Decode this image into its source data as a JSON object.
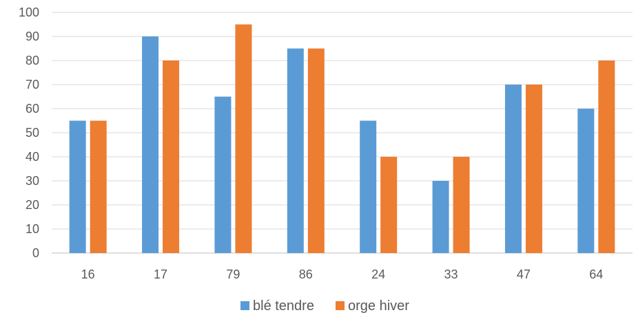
{
  "chart_data": {
    "type": "bar",
    "categories": [
      "16",
      "17",
      "79",
      "86",
      "24",
      "33",
      "47",
      "64"
    ],
    "series": [
      {
        "name": "blé tendre",
        "color": "#5B9BD5",
        "values": [
          55,
          90,
          65,
          85,
          55,
          30,
          70,
          60
        ]
      },
      {
        "name": "orge hiver",
        "color": "#ED7D31",
        "values": [
          55,
          80,
          95,
          85,
          40,
          40,
          70,
          80
        ]
      }
    ],
    "ylim": [
      0,
      100
    ],
    "yticks": [
      "0",
      "10",
      "20",
      "30",
      "40",
      "50",
      "60",
      "70",
      "80",
      "90",
      "100"
    ],
    "grid": true,
    "legend_position": "bottom"
  }
}
